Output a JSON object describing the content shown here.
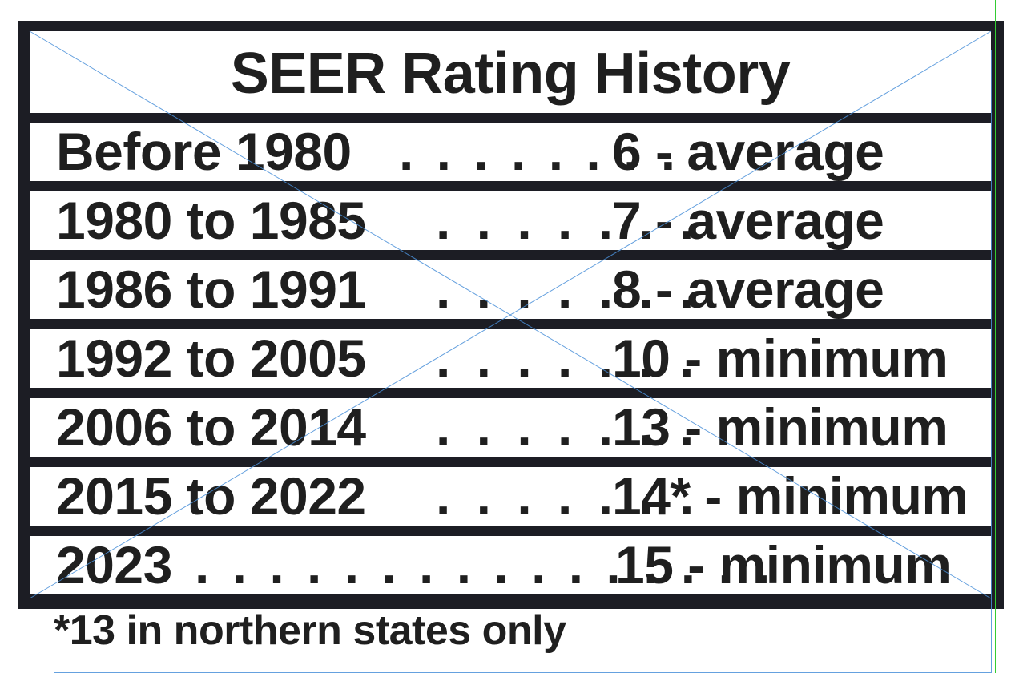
{
  "title": "SEER Rating History",
  "rows": [
    {
      "period": "Before 1980",
      "leader": ". . . . . . . .",
      "rating": "6 - average"
    },
    {
      "period": "1980 to 1985",
      "leader": ". . . . . . .",
      "rating": "7 - average"
    },
    {
      "period": "1986 to 1991",
      "leader": ". . . . . . .",
      "rating": "8 - average"
    },
    {
      "period": "1992 to 2005",
      "leader": ". . . . . . .",
      "rating": "10 - minimum"
    },
    {
      "period": "2006 to 2014",
      "leader": ". . . . . . .",
      "rating": "13 - minimum"
    },
    {
      "period": "2015 to 2022",
      "leader": ". . . . . . .",
      "rating": "14* - minimum"
    },
    {
      "period": "2023",
      "leader": ". . . . . . . . . . . . . . . .",
      "rating": "15 - minimum"
    }
  ],
  "footnote": "*13 in northern states only",
  "colors": {
    "frame": "#1c1d24",
    "text": "#1f1f1f",
    "guide_blue": "#4a90d9",
    "guide_green": "#33cc33"
  }
}
